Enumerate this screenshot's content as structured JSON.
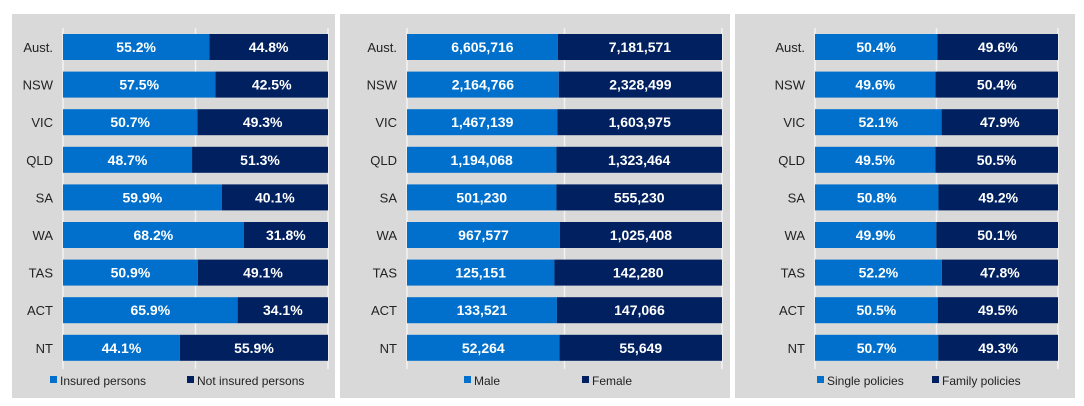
{
  "chart_data": [
    {
      "type": "bar",
      "stacked": "100%",
      "orientation": "horizontal",
      "categories": [
        "Aust.",
        "NSW",
        "VIC",
        "QLD",
        "SA",
        "WA",
        "TAS",
        "ACT",
        "NT"
      ],
      "series": [
        {
          "name": "Insured persons",
          "color": "#0070cc",
          "values": [
            55.2,
            57.5,
            50.7,
            48.7,
            59.9,
            68.2,
            50.9,
            65.9,
            44.1
          ],
          "labels": [
            "55.2%",
            "57.5%",
            "50.7%",
            "48.7%",
            "59.9%",
            "68.2%",
            "50.9%",
            "65.9%",
            "44.1%"
          ]
        },
        {
          "name": "Not insured persons",
          "color": "#002060",
          "values": [
            44.8,
            42.5,
            49.3,
            51.3,
            40.1,
            31.8,
            49.1,
            34.1,
            55.9
          ],
          "labels": [
            "44.8%",
            "42.5%",
            "49.3%",
            "51.3%",
            "40.1%",
            "31.8%",
            "49.1%",
            "34.1%",
            "55.9%"
          ]
        }
      ],
      "legend": "bottom",
      "grid": true
    },
    {
      "type": "bar",
      "stacked": "100%",
      "orientation": "horizontal",
      "categories": [
        "Aust.",
        "NSW",
        "VIC",
        "QLD",
        "SA",
        "WA",
        "TAS",
        "ACT",
        "NT"
      ],
      "series": [
        {
          "name": "Male",
          "color": "#0070cc",
          "values": [
            6605716,
            2164766,
            1467139,
            1194068,
            501230,
            967577,
            125151,
            133521,
            52264
          ],
          "labels": [
            "6,605,716",
            "2,164,766",
            "1,467,139",
            "1,194,068",
            "501,230",
            "967,577",
            "125,151",
            "133,521",
            "52,264"
          ]
        },
        {
          "name": "Female",
          "color": "#002060",
          "values": [
            7181571,
            2328499,
            1603975,
            1323464,
            555230,
            1025408,
            142280,
            147066,
            55649
          ],
          "labels": [
            "7,181,571",
            "2,328,499",
            "1,603,975",
            "1,323,464",
            "555,230",
            "1,025,408",
            "142,280",
            "147,066",
            "55,649"
          ]
        }
      ],
      "legend": "bottom",
      "grid": true
    },
    {
      "type": "bar",
      "stacked": "100%",
      "orientation": "horizontal",
      "categories": [
        "Aust.",
        "NSW",
        "VIC",
        "QLD",
        "SA",
        "WA",
        "TAS",
        "ACT",
        "NT"
      ],
      "series": [
        {
          "name": "Single policies",
          "color": "#0070cc",
          "values": [
            50.4,
            49.6,
            52.1,
            49.5,
            50.8,
            49.9,
            52.2,
            50.5,
            50.7
          ],
          "labels": [
            "50.4%",
            "49.6%",
            "52.1%",
            "49.5%",
            "50.8%",
            "49.9%",
            "52.2%",
            "50.5%",
            "50.7%"
          ]
        },
        {
          "name": "Family policies",
          "color": "#002060",
          "values": [
            49.6,
            50.4,
            47.9,
            50.5,
            49.2,
            50.1,
            47.8,
            49.5,
            49.3
          ],
          "labels": [
            "49.6%",
            "50.4%",
            "47.9%",
            "50.5%",
            "49.2%",
            "50.1%",
            "47.8%",
            "49.5%",
            "49.3%"
          ]
        }
      ],
      "legend": "bottom",
      "grid": true
    }
  ]
}
